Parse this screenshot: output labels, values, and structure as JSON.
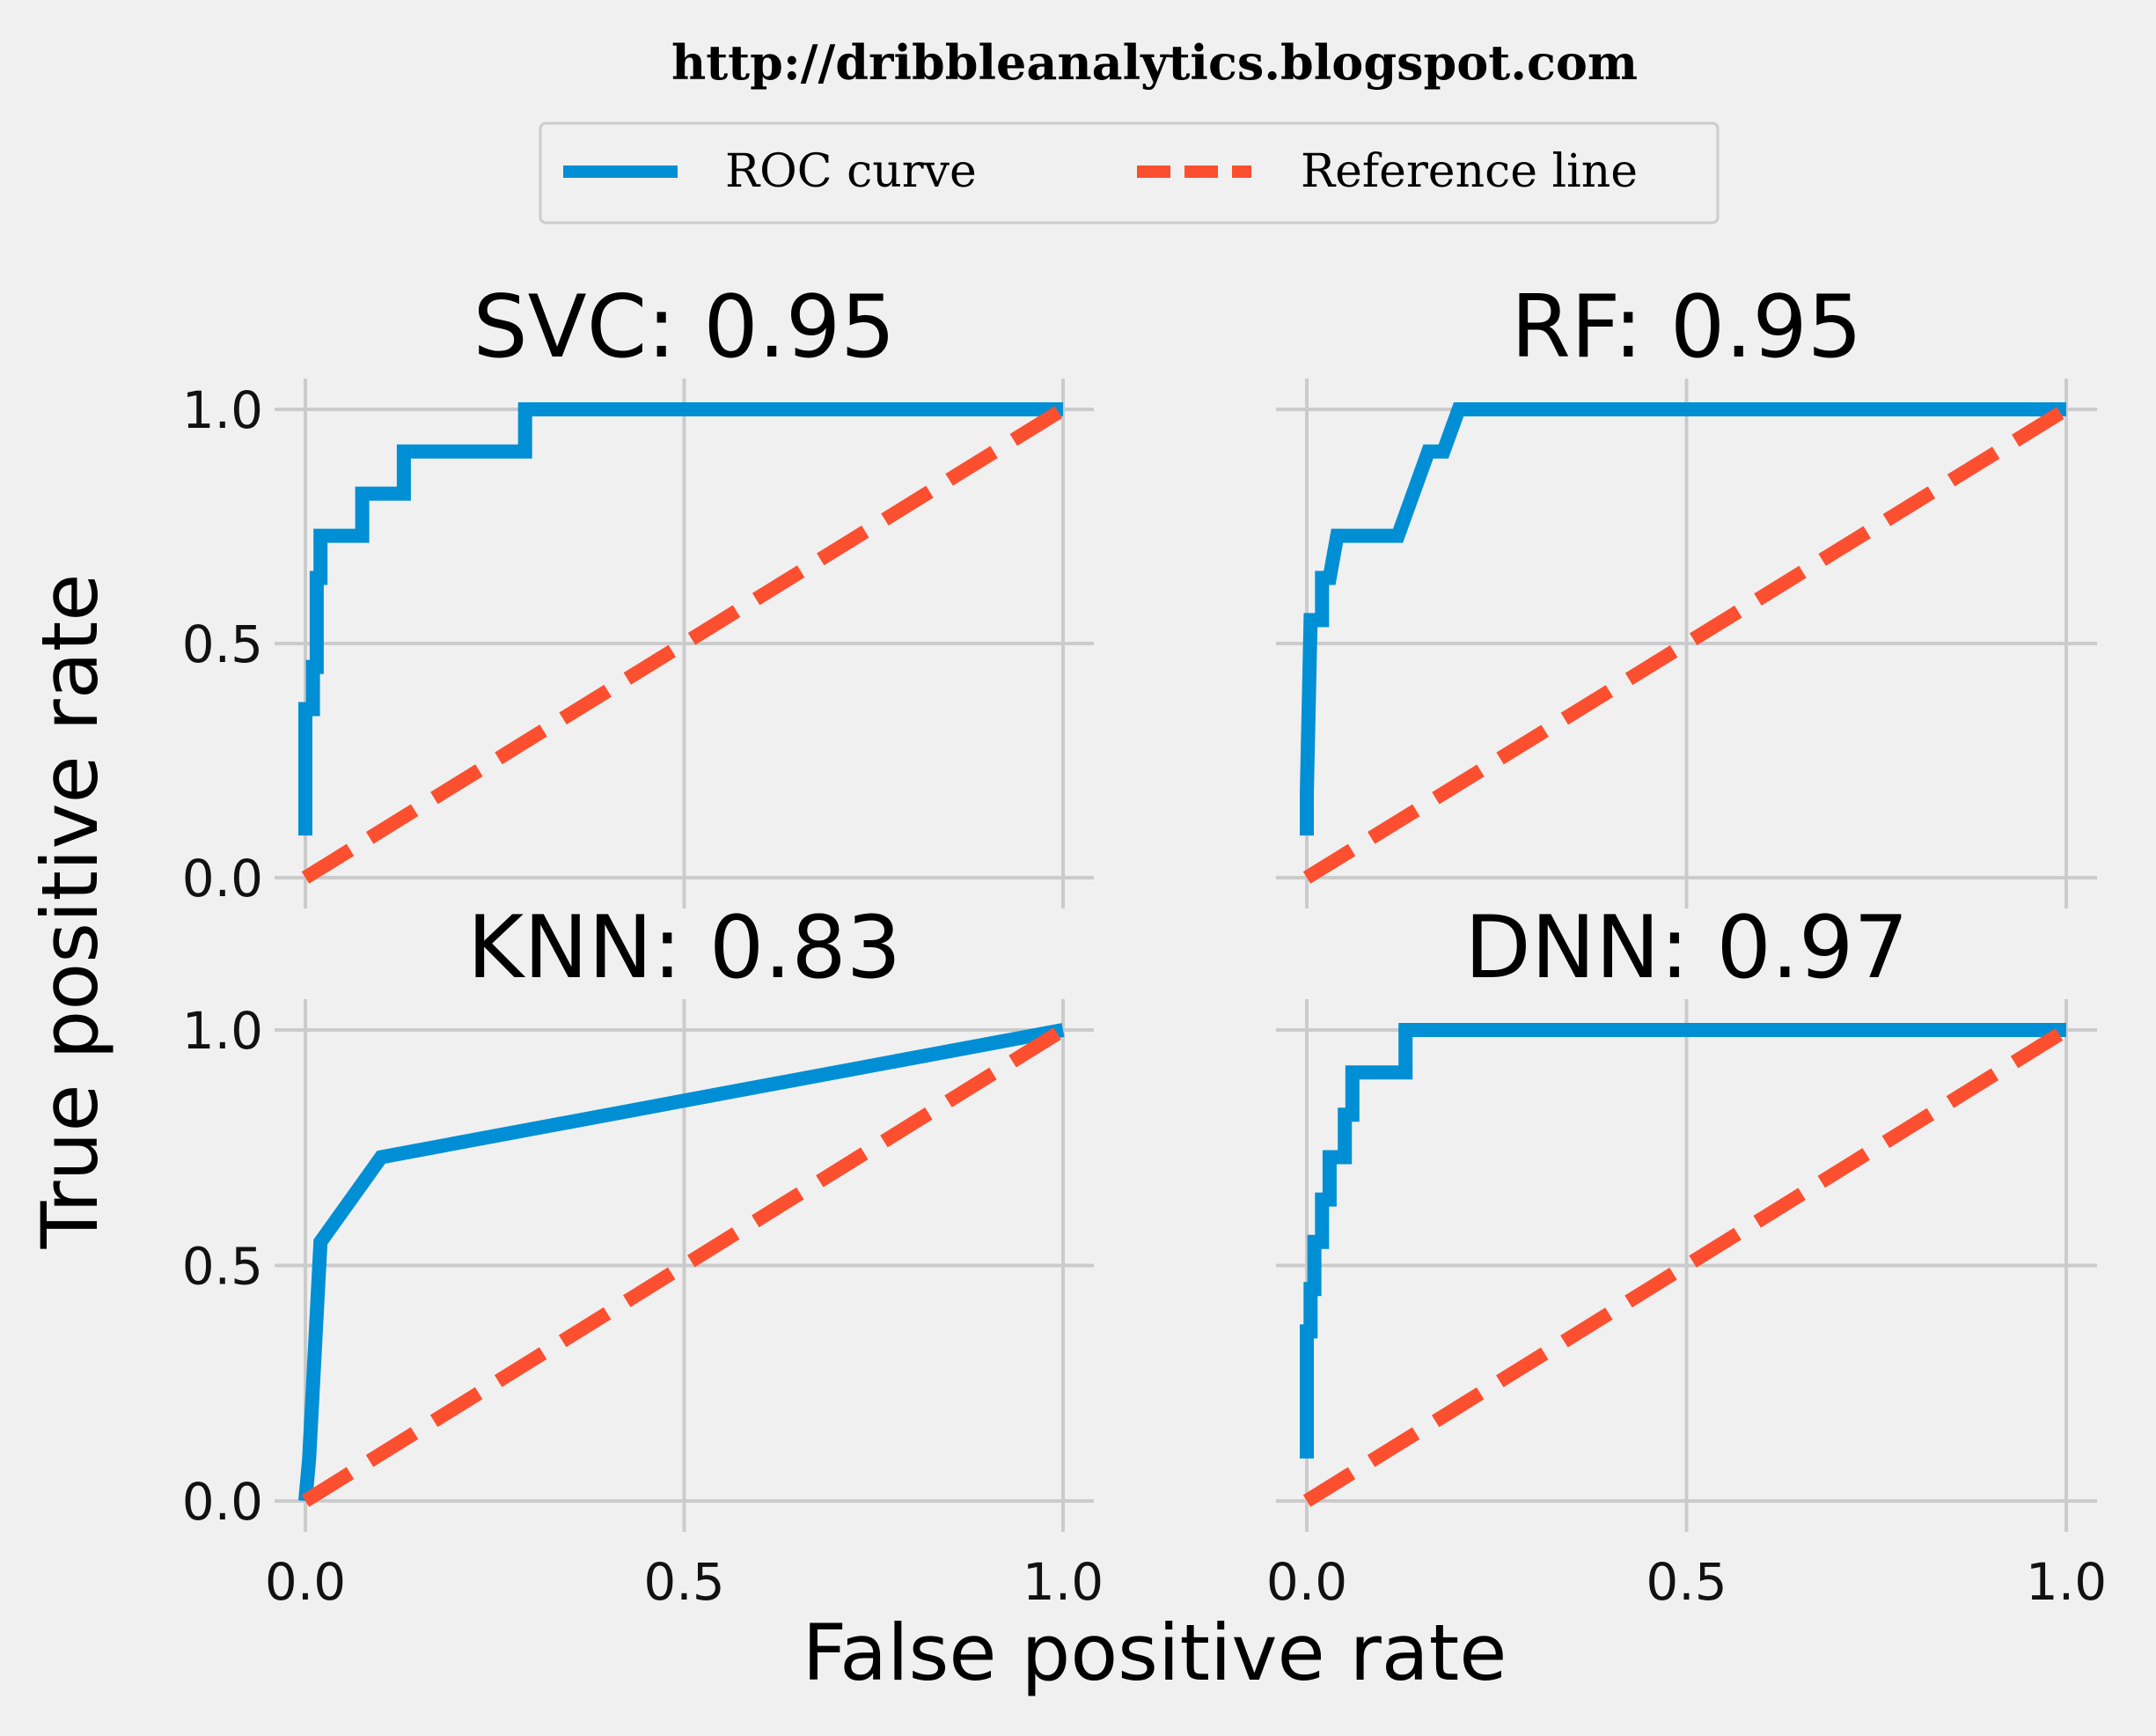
{
  "source_url": "http://dribbleanalytics.blogspot.com",
  "legend": {
    "entries": [
      {
        "label": "ROC curve",
        "color": "#008fd5",
        "style": "solid"
      },
      {
        "label": "Reference line",
        "color": "#fc4f30",
        "style": "dashed"
      }
    ],
    "placement": "top-center"
  },
  "axes": {
    "xlabel": "False positive rate",
    "ylabel": "True positive rate"
  },
  "chart_data": [
    {
      "type": "line",
      "title": "SVC: 0.95",
      "xlim": [
        0,
        1
      ],
      "ylim": [
        0,
        1
      ],
      "xticks": [
        "0.0",
        "0.5",
        "1.0"
      ],
      "yticks": [
        "0.0",
        "0.5",
        "1.0"
      ],
      "grid": true,
      "series": [
        {
          "name": "ROC curve",
          "x": [
            0,
            0,
            0.01,
            0.01,
            0.015,
            0.015,
            0.02,
            0.02,
            0.075,
            0.075,
            0.13,
            0.13,
            0.29,
            0.29,
            1.0
          ],
          "y": [
            0.09,
            0.36,
            0.36,
            0.45,
            0.45,
            0.64,
            0.64,
            0.73,
            0.73,
            0.82,
            0.82,
            0.91,
            0.91,
            1.0,
            1.0
          ]
        },
        {
          "name": "Reference line",
          "x": [
            0,
            1
          ],
          "y": [
            0,
            1
          ]
        }
      ]
    },
    {
      "type": "line",
      "title": "RF: 0.95",
      "xlim": [
        0,
        1
      ],
      "ylim": [
        0,
        1
      ],
      "xticks": [
        "0.0",
        "0.5",
        "1.0"
      ],
      "yticks": [
        "0.0",
        "0.5",
        "1.0"
      ],
      "grid": true,
      "series": [
        {
          "name": "ROC curve",
          "x": [
            0,
            0,
            0.005,
            0.01,
            0.02,
            0.02,
            0.03,
            0.04,
            0.12,
            0.14,
            0.16,
            0.18,
            0.2,
            1.0
          ],
          "y": [
            0.09,
            0.18,
            0.55,
            0.55,
            0.55,
            0.64,
            0.64,
            0.73,
            0.73,
            0.82,
            0.91,
            0.91,
            1.0,
            1.0
          ]
        },
        {
          "name": "Reference line",
          "x": [
            0,
            1
          ],
          "y": [
            0,
            1
          ]
        }
      ]
    },
    {
      "type": "line",
      "title": "KNN: 0.83",
      "xlim": [
        0,
        1
      ],
      "ylim": [
        0,
        1
      ],
      "xticks": [
        "0.0",
        "0.5",
        "1.0"
      ],
      "yticks": [
        "0.0",
        "0.5",
        "1.0"
      ],
      "grid": true,
      "series": [
        {
          "name": "ROC curve",
          "x": [
            0,
            0.005,
            0.02,
            0.1,
            1.0
          ],
          "y": [
            0,
            0.09,
            0.55,
            0.73,
            1.0
          ]
        },
        {
          "name": "Reference line",
          "x": [
            0,
            1
          ],
          "y": [
            0,
            1
          ]
        }
      ]
    },
    {
      "type": "line",
      "title": "DNN: 0.97",
      "xlim": [
        0,
        1
      ],
      "ylim": [
        0,
        1
      ],
      "xticks": [
        "0.0",
        "0.5",
        "1.0"
      ],
      "yticks": [
        "0.0",
        "0.5",
        "1.0"
      ],
      "grid": true,
      "series": [
        {
          "name": "ROC curve",
          "x": [
            0,
            0,
            0.005,
            0.005,
            0.01,
            0.01,
            0.02,
            0.02,
            0.03,
            0.03,
            0.05,
            0.05,
            0.06,
            0.06,
            0.13,
            0.13,
            1.0
          ],
          "y": [
            0.09,
            0.36,
            0.36,
            0.45,
            0.45,
            0.55,
            0.55,
            0.64,
            0.64,
            0.73,
            0.73,
            0.82,
            0.82,
            0.91,
            0.91,
            1.0,
            1.0
          ]
        },
        {
          "name": "Reference line",
          "x": [
            0,
            1
          ],
          "y": [
            0,
            1
          ]
        }
      ]
    }
  ]
}
